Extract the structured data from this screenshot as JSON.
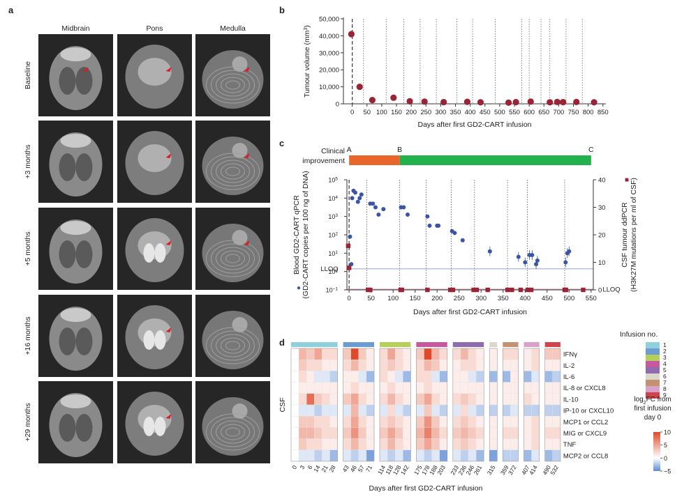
{
  "panel_letters": {
    "a": "a",
    "b": "b",
    "c": "c",
    "d": "d"
  },
  "colors": {
    "marker_red": "#9b2335",
    "marker_blue": "#3a55a8",
    "clinical_orange": "#e8662a",
    "clinical_green": "#22b14c",
    "lloq_line": "#a9b2e8",
    "scan_dark": "#262626",
    "scan_tissue": "#9a9a9a",
    "heat_high": "#e04a2a",
    "heat_low": "#5b8bd6",
    "heat_mid": "#ffffff"
  },
  "panel_a": {
    "column_titles": [
      "Midbrain",
      "Pons",
      "Medulla"
    ],
    "row_labels": [
      "Baseline",
      "+3 months",
      "+5 months",
      "+16 months",
      "+29 months"
    ],
    "tumour_marker": [
      [
        true,
        true,
        true
      ],
      [
        false,
        true,
        true
      ],
      [
        false,
        true,
        true
      ],
      [
        false,
        true,
        false
      ],
      [
        false,
        true,
        false
      ]
    ]
  },
  "chart_data": [
    {
      "id": "b",
      "type": "scatter",
      "ylabel_main": "Tumour volume (mm",
      "ylabel_sup": "3",
      "ylabel_end": ")",
      "xlabel": "Days after first GD2-CART infusion",
      "xlim": [
        -30,
        860
      ],
      "ylim": [
        0,
        50000
      ],
      "x_ticks": [
        0,
        50,
        100,
        150,
        200,
        250,
        300,
        350,
        400,
        450,
        500,
        550,
        600,
        650,
        700,
        750,
        800,
        850
      ],
      "y_ticks": [
        0,
        10000,
        20000,
        30000,
        40000,
        50000
      ],
      "y_tick_labels": [
        "0",
        "10,000",
        "20,000",
        "30,000",
        "40,000",
        "50,000"
      ],
      "infusion_days": [
        0,
        38,
        115,
        175,
        230,
        285,
        355,
        408,
        485,
        575,
        600,
        640,
        670,
        725,
        780
      ],
      "points": [
        {
          "x": -3,
          "y": 41000
        },
        {
          "x": 25,
          "y": 10000
        },
        {
          "x": 68,
          "y": 2200
        },
        {
          "x": 140,
          "y": 3600
        },
        {
          "x": 195,
          "y": 1500
        },
        {
          "x": 245,
          "y": 1300
        },
        {
          "x": 310,
          "y": 1000
        },
        {
          "x": 390,
          "y": 1200
        },
        {
          "x": 435,
          "y": 900
        },
        {
          "x": 530,
          "y": 700
        },
        {
          "x": 555,
          "y": 1000
        },
        {
          "x": 605,
          "y": 1300
        },
        {
          "x": 670,
          "y": 900
        },
        {
          "x": 695,
          "y": 1100
        },
        {
          "x": 715,
          "y": 1000
        },
        {
          "x": 760,
          "y": 1100
        },
        {
          "x": 820,
          "y": 900
        }
      ]
    },
    {
      "id": "c",
      "type": "scatter",
      "clinical_label": [
        "Clinical",
        "improvement"
      ],
      "clinical_segments": [
        {
          "from_day": 0,
          "to_day": 115,
          "color": "#e8662a"
        },
        {
          "from_day": 115,
          "to_day": 550,
          "color": "#22b14c"
        }
      ],
      "clinical_markers": [
        {
          "label": "A",
          "day": 0
        },
        {
          "label": "B",
          "day": 115
        },
        {
          "label": "C",
          "day": 550
        }
      ],
      "xlabel": "Days after first GD2-CART infusion",
      "xlim": [
        -5,
        555
      ],
      "x_ticks": [
        0,
        50,
        100,
        150,
        200,
        250,
        300,
        350,
        400,
        450,
        500,
        550
      ],
      "y_left_label": [
        "Blood GD2-CART qPCR",
        "(GD2-CART copies per 100 ng of DNA)"
      ],
      "y_left_log_range": [
        -1,
        5
      ],
      "y_left_ticks": [
        -1,
        0,
        1,
        2,
        3,
        4,
        5
      ],
      "y_right_label": [
        "CSF tumour ddPCR",
        "(H3K27M mutations per ml of CSF)"
      ],
      "y_right_ylim": [
        0,
        40
      ],
      "y_right_ticks": [
        0,
        10,
        20,
        30,
        40
      ],
      "lloq_label": "LLOQ",
      "lloq_left_log": 0.15,
      "lloq_right_label": "LLOQ",
      "lloq_right_value": 0.2,
      "legend_blue": "●",
      "legend_red": "■",
      "infusion_days": [
        0,
        40,
        115,
        175,
        232,
        285,
        360,
        405,
        490
      ],
      "blood_qpcr_log": [
        {
          "x": 2,
          "y": 1.9
        },
        {
          "x": 5,
          "y": 0.4
        },
        {
          "x": 7,
          "y": 4.0
        },
        {
          "x": 10,
          "y": 4.4
        },
        {
          "x": 14,
          "y": 4.3
        },
        {
          "x": 20,
          "y": 3.8
        },
        {
          "x": 24,
          "y": 4.0
        },
        {
          "x": 28,
          "y": 4.2
        },
        {
          "x": 48,
          "y": 3.7
        },
        {
          "x": 54,
          "y": 3.7
        },
        {
          "x": 60,
          "y": 3.5
        },
        {
          "x": 67,
          "y": 3.1
        },
        {
          "x": 78,
          "y": 3.4
        },
        {
          "x": 118,
          "y": 3.5
        },
        {
          "x": 124,
          "y": 3.5
        },
        {
          "x": 133,
          "y": 3.1
        },
        {
          "x": 178,
          "y": 3.0
        },
        {
          "x": 183,
          "y": 2.5
        },
        {
          "x": 200,
          "y": 2.5
        },
        {
          "x": 203,
          "y": 2.5
        },
        {
          "x": 234,
          "y": 2.2
        },
        {
          "x": 240,
          "y": 2.1
        },
        {
          "x": 258,
          "y": 1.7
        },
        {
          "x": 320,
          "y": 1.1
        },
        {
          "x": 385,
          "y": 0.8
        },
        {
          "x": 400,
          "y": 0.5
        },
        {
          "x": 410,
          "y": 0.9
        },
        {
          "x": 416,
          "y": 0.9
        },
        {
          "x": 425,
          "y": 0.4
        },
        {
          "x": 428,
          "y": 0.6
        },
        {
          "x": 492,
          "y": 0.5
        },
        {
          "x": 496,
          "y": 1.0
        },
        {
          "x": 500,
          "y": 1.1
        }
      ],
      "csf_ddpcr": [
        {
          "x": -2,
          "y": 16
        },
        {
          "x": 0,
          "y": 8
        },
        {
          "x": 43,
          "y": 0
        },
        {
          "x": 48,
          "y": 0
        },
        {
          "x": 117,
          "y": 0
        },
        {
          "x": 120,
          "y": 0
        },
        {
          "x": 178,
          "y": 0
        },
        {
          "x": 230,
          "y": 0
        },
        {
          "x": 236,
          "y": 0
        },
        {
          "x": 283,
          "y": 0
        },
        {
          "x": 290,
          "y": 0
        },
        {
          "x": 315,
          "y": 0
        },
        {
          "x": 360,
          "y": 0
        },
        {
          "x": 370,
          "y": 0
        },
        {
          "x": 390,
          "y": 0
        },
        {
          "x": 406,
          "y": 0
        },
        {
          "x": 414,
          "y": 0
        },
        {
          "x": 490,
          "y": 0
        },
        {
          "x": 493,
          "y": 0
        },
        {
          "x": 532,
          "y": 0
        }
      ]
    },
    {
      "id": "d",
      "type": "heatmap",
      "row_group_label": "CSF",
      "xlabel": "Days after first GD2-CART infusion",
      "rows": [
        "IFNγ",
        "IL-2",
        "IL-6",
        "IL-8 or CXCL8",
        "IL-10",
        "IP-10 or CXCL10",
        "MCP1 or CCL2",
        "MIG or CXCL9",
        "TNF",
        "MCP2 or CCL8"
      ],
      "column_groups": [
        {
          "infusion": 1,
          "color": "#8fd0dd",
          "days": [
            "0",
            "3",
            "6",
            "14",
            "21",
            "28"
          ]
        },
        {
          "infusion": 2,
          "color": "#6b9cd2",
          "days": [
            "43",
            "46",
            "57",
            "71"
          ]
        },
        {
          "infusion": 3,
          "color": "#b5cf5a",
          "days": [
            "114",
            "118",
            "128",
            "142"
          ]
        },
        {
          "infusion": 4,
          "color": "#c7579f",
          "days": [
            "175",
            "178",
            "188",
            "203"
          ]
        },
        {
          "infusion": 5,
          "color": "#8f6bb0",
          "days": [
            "233",
            "236",
            "246",
            "261"
          ]
        },
        {
          "infusion": 6,
          "color": "#dcd7cb",
          "days": [
            "315"
          ]
        },
        {
          "infusion": 7,
          "color": "#c49270",
          "days": [
            "359",
            "372"
          ]
        },
        {
          "infusion": 8,
          "color": "#d8a1c9",
          "days": [
            "407",
            "414"
          ]
        },
        {
          "infusion": 9,
          "color": "#d1434b",
          "days": [
            "490",
            "532"
          ]
        }
      ],
      "values": [
        [
          0,
          4,
          3,
          5,
          2,
          2,
          3,
          10,
          3,
          1,
          2,
          5,
          2,
          1,
          3,
          10,
          4,
          2,
          2,
          4,
          2,
          1,
          1,
          2,
          2,
          1,
          2,
          3,
          3,
          1,
          3
        ],
        [
          0,
          3,
          2,
          2,
          1,
          1,
          2,
          4,
          2,
          1,
          2,
          3,
          2,
          1,
          2,
          4,
          3,
          1,
          1,
          2,
          2,
          1,
          1,
          1,
          1,
          1,
          2,
          1,
          1,
          1,
          2
        ],
        [
          0,
          2,
          1,
          -1,
          -1,
          -2,
          1,
          1,
          -1,
          -3,
          2,
          1,
          -1,
          -3,
          2,
          2,
          -1,
          -3,
          1,
          1,
          -1,
          -2,
          -3,
          -3,
          1,
          -3,
          -1,
          -3,
          -2,
          -4,
          -4
        ],
        [
          0,
          1,
          1,
          1,
          1,
          1,
          1,
          2,
          1,
          1,
          1,
          2,
          1,
          1,
          1,
          2,
          1,
          1,
          1,
          1,
          1,
          1,
          1,
          1,
          1,
          1,
          1,
          1,
          1,
          1,
          1
        ],
        [
          0,
          2,
          8,
          3,
          2,
          1,
          3,
          5,
          2,
          1,
          2,
          4,
          2,
          1,
          3,
          5,
          2,
          1,
          2,
          3,
          2,
          1,
          1,
          1,
          1,
          2,
          1,
          1,
          1,
          1,
          1
        ],
        [
          0,
          -1,
          -1,
          -2,
          -1,
          -1,
          -1,
          4,
          -1,
          -2,
          -1,
          2,
          -1,
          -2,
          -1,
          3,
          -1,
          -2,
          -1,
          2,
          -1,
          -2,
          -2,
          -2,
          -1,
          -2,
          -2,
          -2,
          -2,
          -2,
          -2
        ],
        [
          0,
          3,
          3,
          2,
          2,
          1,
          2,
          5,
          2,
          1,
          2,
          3,
          2,
          1,
          3,
          6,
          3,
          1,
          2,
          3,
          2,
          1,
          1,
          1,
          1,
          1,
          2,
          1,
          1,
          1,
          1
        ],
        [
          0,
          4,
          4,
          3,
          2,
          2,
          3,
          6,
          3,
          1,
          3,
          5,
          3,
          1,
          4,
          7,
          4,
          2,
          3,
          4,
          3,
          2,
          1,
          2,
          2,
          1,
          2,
          2,
          2,
          1,
          2
        ],
        [
          0,
          3,
          2,
          2,
          1,
          1,
          2,
          4,
          2,
          1,
          2,
          4,
          2,
          1,
          3,
          5,
          3,
          1,
          2,
          3,
          2,
          1,
          1,
          1,
          1,
          1,
          2,
          1,
          1,
          1,
          1
        ],
        [
          0,
          -1,
          -1,
          -2,
          -1,
          -3,
          -1,
          -2,
          -1,
          -4,
          -1,
          -2,
          -1,
          -3,
          -1,
          -2,
          -1,
          -4,
          -1,
          -2,
          -1,
          -3,
          -4,
          -2,
          -2,
          -3,
          -1,
          -3,
          -2,
          -4,
          -4
        ]
      ],
      "legend_title": "Infusion no.",
      "legend_items": [
        "1",
        "2",
        "3",
        "4",
        "5",
        "6",
        "7",
        "8",
        "9"
      ],
      "colorbar_title": [
        "log",
        "FC from",
        "first infusion",
        "day 0"
      ],
      "colorbar_sub": "2",
      "colorbar_range": [
        -5,
        10
      ],
      "colorbar_ticks": [
        10,
        5,
        0,
        -5
      ],
      "colorbar_tick_labels": [
        "10",
        "5",
        "0",
        "−5"
      ]
    }
  ]
}
